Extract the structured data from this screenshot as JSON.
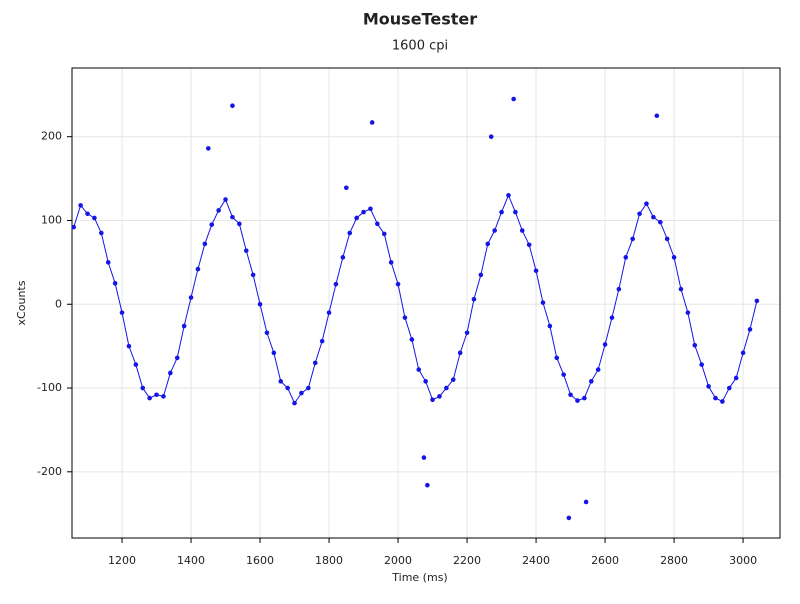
{
  "chart_data": {
    "type": "scatter-line",
    "title": "MouseTester",
    "subtitle": "1600 cpi",
    "x_label": "Time (ms)",
    "y_label": "xCounts",
    "xlim": [
      1055,
      3107
    ],
    "ylim": [
      -279,
      282
    ],
    "xticks": [
      1200,
      1400,
      1600,
      1800,
      2000,
      2200,
      2400,
      2600,
      2800,
      3000
    ],
    "yticks": [
      -200,
      -100,
      0,
      100,
      200
    ],
    "grid": true,
    "series": [
      {
        "color": "#1515e6",
        "x": [
          1060,
          1080,
          1100,
          1120,
          1140,
          1160,
          1180,
          1200,
          1220,
          1240,
          1260,
          1280,
          1300,
          1320,
          1340,
          1360,
          1380,
          1400,
          1420,
          1440,
          1460,
          1480,
          1500,
          1520,
          1540,
          1560,
          1580,
          1600,
          1620,
          1640,
          1660,
          1680,
          1700,
          1720,
          1740,
          1760,
          1780,
          1800,
          1820,
          1840,
          1860,
          1880,
          1900,
          1920,
          1940,
          1960,
          1980,
          2000,
          2020,
          2040,
          2060,
          2080,
          2100,
          2120,
          2140,
          2160,
          2180,
          2200,
          2220,
          2240,
          2260,
          2280,
          2300,
          2320,
          2340,
          2360,
          2380,
          2400,
          2420,
          2440,
          2460,
          2480,
          2500,
          2520,
          2540,
          2560,
          2580,
          2600,
          2620,
          2640,
          2660,
          2680,
          2700,
          2720,
          2740,
          2760,
          2780,
          2800,
          2820,
          2840,
          2860,
          2880,
          2900,
          2920,
          2940,
          2960,
          2980,
          3000,
          3020,
          3040
        ],
        "values": [
          92,
          118,
          108,
          103,
          85,
          50,
          25,
          -10,
          -50,
          -72,
          -100,
          -112,
          -108,
          -110,
          -82,
          -64,
          -26,
          8,
          42,
          72,
          95,
          112,
          125,
          104,
          96,
          64,
          35,
          0,
          -34,
          -58,
          -92,
          -100,
          -118,
          -106,
          -100,
          -70,
          -44,
          -10,
          24,
          56,
          85,
          103,
          110,
          114,
          96,
          84,
          50,
          24,
          -16,
          -42,
          -78,
          -92,
          -114,
          -110,
          -100,
          -90,
          -58,
          -34,
          6,
          35,
          72,
          88,
          110,
          130,
          110,
          88,
          71,
          40,
          2,
          -26,
          -64,
          -84,
          -108,
          -115,
          -112,
          -92,
          -78,
          -48,
          -16,
          18,
          56,
          78,
          108,
          120,
          104,
          98,
          78,
          56,
          18,
          -10,
          -49,
          -72,
          -98,
          -112,
          -116,
          -100,
          -88,
          -58,
          -30,
          4
        ]
      }
    ],
    "outliers": {
      "x": [
        1450,
        1520,
        1850,
        1925,
        2075,
        2085,
        2270,
        2335,
        2495,
        2545,
        2750
      ],
      "values": [
        186,
        237,
        139,
        217,
        -183,
        -216,
        200,
        245,
        -255,
        -236,
        225
      ]
    }
  }
}
